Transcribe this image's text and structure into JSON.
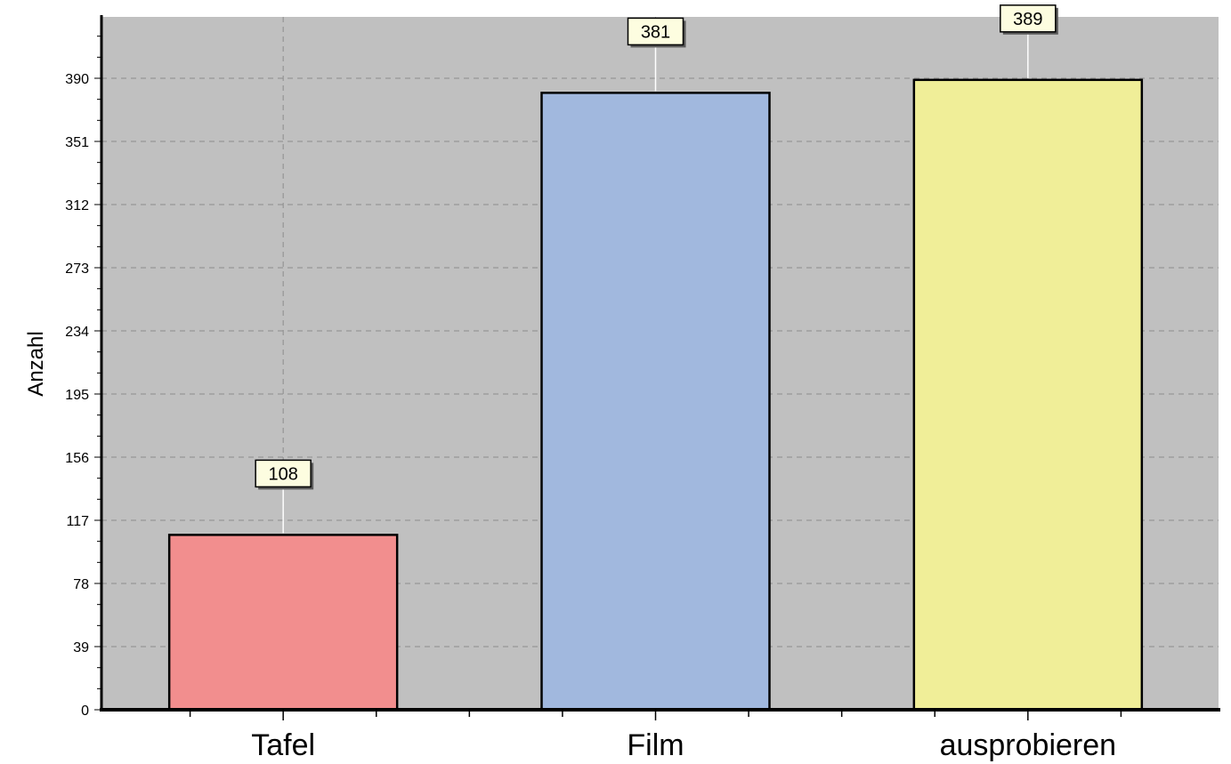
{
  "chart_data": {
    "type": "bar",
    "title": "",
    "xlabel": "",
    "ylabel": "Anzahl",
    "categories": [
      "Tafel",
      "Film",
      "ausprobieren"
    ],
    "values": [
      108,
      381,
      389
    ],
    "bar_colors": [
      "#f28e8e",
      "#a1b8de",
      "#f0ee98"
    ],
    "ylim": [
      0,
      390
    ],
    "yticks": [
      0,
      39,
      78,
      117,
      156,
      195,
      234,
      273,
      312,
      351,
      390
    ],
    "grid": true,
    "grid_style": "dashed",
    "plot_background": "#c0c0c0",
    "data_label_background": "#fdfde0",
    "legend": "none"
  }
}
